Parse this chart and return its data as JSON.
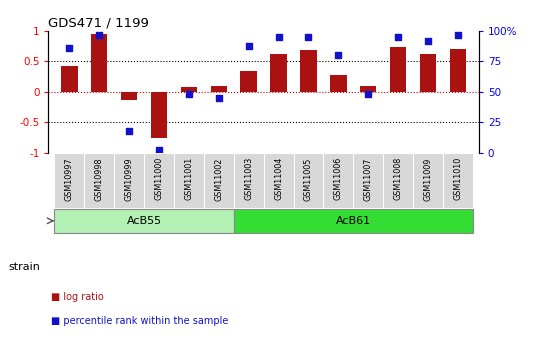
{
  "title": "GDS471 / 1199",
  "samples": [
    "GSM10997",
    "GSM10998",
    "GSM10999",
    "GSM11000",
    "GSM11001",
    "GSM11002",
    "GSM11003",
    "GSM11004",
    "GSM11005",
    "GSM11006",
    "GSM11007",
    "GSM11008",
    "GSM11009",
    "GSM11010"
  ],
  "log_ratio": [
    0.42,
    0.95,
    -0.13,
    -0.75,
    0.08,
    0.1,
    0.35,
    0.63,
    0.69,
    0.27,
    0.1,
    0.73,
    0.62,
    0.7
  ],
  "percentile_rank": [
    86,
    97,
    18,
    2,
    48,
    45,
    88,
    95,
    95,
    80,
    48,
    95,
    92,
    97
  ],
  "groups": [
    {
      "label": "AcB55",
      "start": 0,
      "end": 5,
      "color": "#b3f0b3"
    },
    {
      "label": "AcB61",
      "start": 6,
      "end": 13,
      "color": "#33dd33"
    }
  ],
  "bar_color": "#aa1111",
  "dot_color": "#1111cc",
  "ylim_left": [
    -1,
    1
  ],
  "ylim_right": [
    0,
    100
  ],
  "yticks_left": [
    -1,
    -0.5,
    0,
    0.5,
    1
  ],
  "yticks_right": [
    0,
    25,
    50,
    75,
    100
  ],
  "ytick_labels_left": [
    "-1",
    "-0.5",
    "0",
    "0.5",
    "1"
  ],
  "ytick_labels_right": [
    "0",
    "25",
    "50",
    "75",
    "100%"
  ],
  "hlines": [
    -0.5,
    0,
    0.5
  ],
  "hline_colors": [
    "black",
    "#cc0000",
    "black"
  ],
  "hline_styles": [
    "dotted",
    "dotted",
    "dotted"
  ],
  "legend_items": [
    {
      "label": "log ratio",
      "color": "#aa1111"
    },
    {
      "label": "percentile rank within the sample",
      "color": "#1111cc"
    }
  ],
  "strain_label": "strain",
  "bar_width": 0.55,
  "dot_size": 18
}
